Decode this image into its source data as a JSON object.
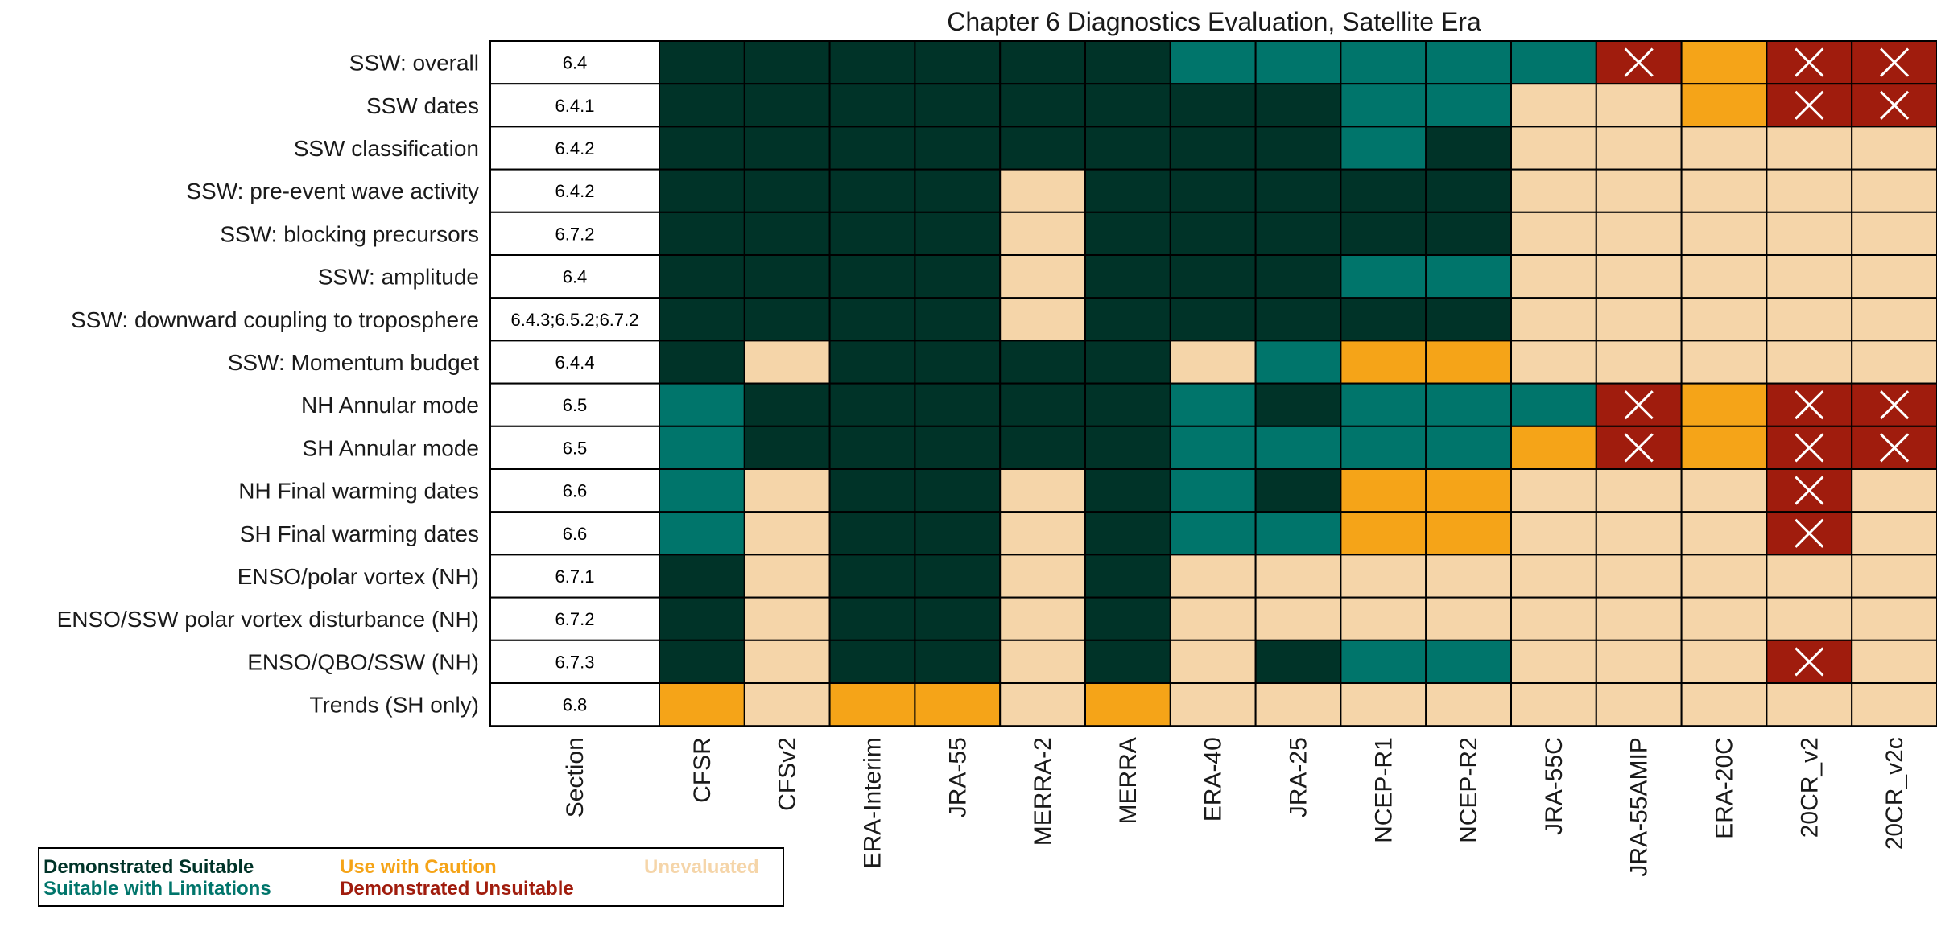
{
  "chart_data": {
    "type": "heatmap",
    "title": "Chapter 6 Diagnostics Evaluation, Satellite Era",
    "section_header": "Section",
    "columns": [
      "CFSR",
      "CFSv2",
      "ERA-Interim",
      "JRA-55",
      "MERRA-2",
      "MERRA",
      "ERA-40",
      "JRA-25",
      "NCEP-R1",
      "NCEP-R2",
      "JRA-55C",
      "JRA-55AMIP",
      "ERA-20C",
      "20CR_v2",
      "20CR_v2c"
    ],
    "rows": [
      {
        "label": "SSW: overall",
        "section": "6.4",
        "values": [
          "DS",
          "DS",
          "DS",
          "DS",
          "DS",
          "DS",
          "SL",
          "SL",
          "SL",
          "SL",
          "SL",
          "DU",
          "UC",
          "DU",
          "DU"
        ]
      },
      {
        "label": "SSW dates",
        "section": "6.4.1",
        "values": [
          "DS",
          "DS",
          "DS",
          "DS",
          "DS",
          "DS",
          "DS",
          "DS",
          "SL",
          "SL",
          "UE",
          "UE",
          "UC",
          "DU",
          "DU"
        ]
      },
      {
        "label": "SSW classification",
        "section": "6.4.2",
        "values": [
          "DS",
          "DS",
          "DS",
          "DS",
          "DS",
          "DS",
          "DS",
          "DS",
          "SL",
          "DS",
          "UE",
          "UE",
          "UE",
          "UE",
          "UE"
        ]
      },
      {
        "label": "SSW: pre-event wave activity ",
        "section": "6.4.2",
        "values": [
          "DS",
          "DS",
          "DS",
          "DS",
          "UE",
          "DS",
          "DS",
          "DS",
          "DS",
          "DS",
          "UE",
          "UE",
          "UE",
          "UE",
          "UE"
        ]
      },
      {
        "label": "SSW: blocking precursors ",
        "section": "6.7.2",
        "values": [
          "DS",
          "DS",
          "DS",
          "DS",
          "UE",
          "DS",
          "DS",
          "DS",
          "DS",
          "DS",
          "UE",
          "UE",
          "UE",
          "UE",
          "UE"
        ]
      },
      {
        "label": "SSW: amplitude",
        "section": "6.4",
        "values": [
          "DS",
          "DS",
          "DS",
          "DS",
          "UE",
          "DS",
          "DS",
          "DS",
          "SL",
          "SL",
          "UE",
          "UE",
          "UE",
          "UE",
          "UE"
        ]
      },
      {
        "label": "SSW: downward coupling to troposphere ",
        "section": "6.4.3;6.5.2;6.7.2",
        "values": [
          "DS",
          "DS",
          "DS",
          "DS",
          "UE",
          "DS",
          "DS",
          "DS",
          "DS",
          "DS",
          "UE",
          "UE",
          "UE",
          "UE",
          "UE"
        ]
      },
      {
        "label": "SSW: Momentum budget",
        "section": "6.4.4",
        "values": [
          "DS",
          "UE",
          "DS",
          "DS",
          "DS",
          "DS",
          "UE",
          "SL",
          "UC",
          "UC",
          "UE",
          "UE",
          "UE",
          "UE",
          "UE"
        ]
      },
      {
        "label": "NH Annular mode",
        "section": "6.5",
        "values": [
          "SL",
          "DS",
          "DS",
          "DS",
          "DS",
          "DS",
          "SL",
          "DS",
          "SL",
          "SL",
          "SL",
          "DU",
          "UC",
          "DU",
          "DU"
        ]
      },
      {
        "label": "SH Annular mode",
        "section": "6.5",
        "values": [
          "SL",
          "DS",
          "DS",
          "DS",
          "DS",
          "DS",
          "SL",
          "SL",
          "SL",
          "SL",
          "UC",
          "DU",
          "UC",
          "DU",
          "DU"
        ]
      },
      {
        "label": "NH Final warming dates",
        "section": "6.6",
        "values": [
          "SL",
          "UE",
          "DS",
          "DS",
          "UE",
          "DS",
          "SL",
          "DS",
          "UC",
          "UC",
          "UE",
          "UE",
          "UE",
          "DU",
          "UE"
        ]
      },
      {
        "label": "SH Final warming dates ",
        "section": "6.6",
        "values": [
          "SL",
          "UE",
          "DS",
          "DS",
          "UE",
          "DS",
          "SL",
          "SL",
          "UC",
          "UC",
          "UE",
          "UE",
          "UE",
          "DU",
          "UE"
        ]
      },
      {
        "label": "ENSO/polar vortex (NH)",
        "section": "6.7.1",
        "values": [
          "DS",
          "UE",
          "DS",
          "DS",
          "UE",
          "DS",
          "UE",
          "UE",
          "UE",
          "UE",
          "UE",
          "UE",
          "UE",
          "UE",
          "UE"
        ]
      },
      {
        "label": "ENSO/SSW polar vortex disturbance (NH)",
        "section": "6.7.2",
        "values": [
          "DS",
          "UE",
          "DS",
          "DS",
          "UE",
          "DS",
          "UE",
          "UE",
          "UE",
          "UE",
          "UE",
          "UE",
          "UE",
          "UE",
          "UE"
        ]
      },
      {
        "label": "ENSO/QBO/SSW (NH)",
        "section": "6.7.3",
        "values": [
          "DS",
          "UE",
          "DS",
          "DS",
          "UE",
          "DS",
          "UE",
          "DS",
          "SL",
          "SL",
          "UE",
          "UE",
          "UE",
          "DU",
          "UE"
        ]
      },
      {
        "label": "Trends (SH only)",
        "section": "6.8",
        "values": [
          "UC",
          "UE",
          "UC",
          "UC",
          "UE",
          "UC",
          "UE",
          "UE",
          "UE",
          "UE",
          "UE",
          "UE",
          "UE",
          "UE",
          "UE"
        ]
      }
    ],
    "categories": {
      "DS": {
        "label": "Demonstrated Suitable",
        "color": "#003328"
      },
      "SL": {
        "label": "Suitable with Limitations",
        "color": "#00756b"
      },
      "UC": {
        "label": "Use with Caution",
        "color": "#f5a418"
      },
      "DU": {
        "label": "Demonstrated Unsuitable",
        "color": "#a01c0d"
      },
      "UE": {
        "label": "Unevaluated",
        "color": "#f5d5a9"
      }
    },
    "legend_order": [
      [
        "DS",
        "UC",
        "UE"
      ],
      [
        "SL",
        "DU"
      ]
    ],
    "legend_position": "bottom-left",
    "unsuitable_marker": "cross"
  }
}
